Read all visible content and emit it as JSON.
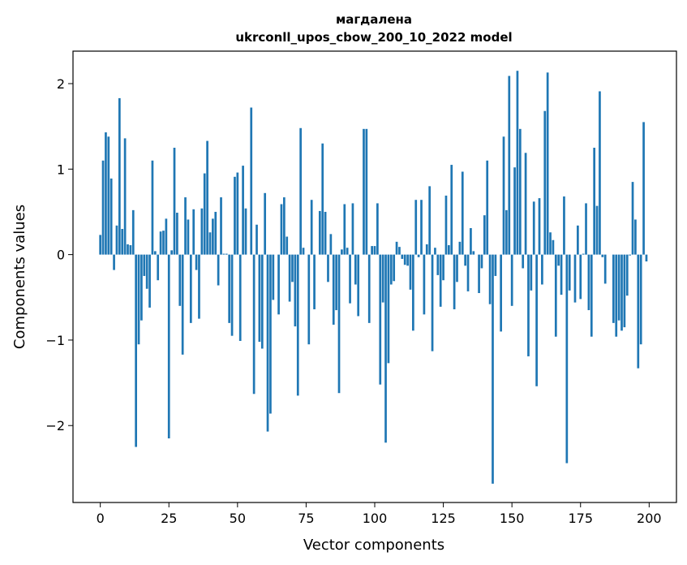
{
  "chart_data": {
    "type": "bar",
    "title_line1": "магдалена",
    "title_line2": "ukrconll_upos_cbow_200_10_2022 model",
    "xlabel": "Vector components",
    "ylabel": "Components values",
    "xlim": [
      -9.95,
      209.95
    ],
    "ylim": [
      -2.9,
      2.38
    ],
    "xticks": [
      0,
      25,
      50,
      75,
      100,
      125,
      150,
      175,
      200
    ],
    "xtick_labels": [
      "0",
      "25",
      "50",
      "75",
      "100",
      "125",
      "150",
      "175",
      "200"
    ],
    "yticks": [
      -2,
      -1,
      0,
      1,
      2
    ],
    "ytick_labels": [
      "−2",
      "−1",
      "0",
      "1",
      "2"
    ],
    "bar_color": "#1f77b4",
    "x": [
      0,
      1,
      2,
      3,
      4,
      5,
      6,
      7,
      8,
      9,
      10,
      11,
      12,
      13,
      14,
      15,
      16,
      17,
      18,
      19,
      20,
      21,
      22,
      23,
      24,
      25,
      26,
      27,
      28,
      29,
      30,
      31,
      32,
      33,
      34,
      35,
      36,
      37,
      38,
      39,
      40,
      41,
      42,
      43,
      44,
      45,
      46,
      47,
      48,
      49,
      50,
      51,
      52,
      53,
      54,
      55,
      56,
      57,
      58,
      59,
      60,
      61,
      62,
      63,
      64,
      65,
      66,
      67,
      68,
      69,
      70,
      71,
      72,
      73,
      74,
      75,
      76,
      77,
      78,
      79,
      80,
      81,
      82,
      83,
      84,
      85,
      86,
      87,
      88,
      89,
      90,
      91,
      92,
      93,
      94,
      95,
      96,
      97,
      98,
      99,
      100,
      101,
      102,
      103,
      104,
      105,
      106,
      107,
      108,
      109,
      110,
      111,
      112,
      113,
      114,
      115,
      116,
      117,
      118,
      119,
      120,
      121,
      122,
      123,
      124,
      125,
      126,
      127,
      128,
      129,
      130,
      131,
      132,
      133,
      134,
      135,
      136,
      137,
      138,
      139,
      140,
      141,
      142,
      143,
      144,
      145,
      146,
      147,
      148,
      149,
      150,
      151,
      152,
      153,
      154,
      155,
      156,
      157,
      158,
      159,
      160,
      161,
      162,
      163,
      164,
      165,
      166,
      167,
      168,
      169,
      170,
      171,
      172,
      173,
      174,
      175,
      176,
      177,
      178,
      179,
      180,
      181,
      182,
      183,
      184,
      185,
      186,
      187,
      188,
      189,
      190,
      191,
      192,
      193,
      194,
      195,
      196,
      197,
      198,
      199
    ],
    "values": [
      0.23,
      1.1,
      1.43,
      1.38,
      0.89,
      -0.18,
      0.34,
      1.83,
      0.3,
      1.36,
      0.12,
      0.11,
      0.52,
      -2.25,
      -1.05,
      -0.77,
      -0.25,
      -0.4,
      -0.62,
      1.1,
      0.04,
      -0.3,
      0.27,
      0.28,
      0.42,
      -2.15,
      0.05,
      1.25,
      0.49,
      -0.6,
      -1.17,
      0.67,
      0.41,
      -0.8,
      0.53,
      -0.18,
      -0.75,
      0.54,
      0.95,
      1.33,
      0.26,
      0.42,
      0.5,
      -0.36,
      0.67,
      0.01,
      0.01,
      -0.8,
      -0.95,
      0.91,
      0.96,
      -1.01,
      1.04,
      0.54,
      0.0,
      1.72,
      -1.63,
      0.35,
      -1.02,
      -1.1,
      0.72,
      -2.07,
      -1.86,
      -0.53,
      0.0,
      -0.7,
      0.59,
      0.67,
      0.21,
      -0.55,
      -0.32,
      -0.84,
      -1.65,
      1.48,
      0.08,
      0.0,
      -1.05,
      0.64,
      -0.64,
      0.0,
      0.51,
      1.3,
      0.5,
      -0.32,
      0.24,
      -0.82,
      -0.65,
      -1.62,
      0.06,
      0.59,
      0.08,
      -0.57,
      0.6,
      -0.35,
      -0.72,
      0.0,
      1.47,
      1.47,
      -0.8,
      0.1,
      0.1,
      0.6,
      -1.52,
      -0.56,
      -2.2,
      -1.27,
      -0.35,
      -0.31,
      0.15,
      0.09,
      -0.05,
      -0.12,
      -0.13,
      -0.41,
      -0.89,
      0.64,
      -0.03,
      0.64,
      -0.7,
      0.12,
      0.8,
      -1.13,
      0.08,
      -0.24,
      -0.61,
      -0.3,
      0.69,
      0.11,
      1.05,
      -0.64,
      -0.32,
      0.15,
      0.97,
      -0.13,
      -0.43,
      0.31,
      0.04,
      0.0,
      -0.45,
      -0.16,
      0.46,
      1.1,
      -0.58,
      -2.68,
      -0.25,
      0.0,
      -0.9,
      1.38,
      0.52,
      2.09,
      -0.6,
      1.02,
      2.15,
      1.47,
      -0.16,
      1.19,
      -1.19,
      -0.42,
      0.62,
      -1.54,
      0.66,
      -0.35,
      1.68,
      2.13,
      0.26,
      0.17,
      -0.96,
      -0.13,
      -0.47,
      0.68,
      -2.44,
      -0.42,
      0.0,
      -0.56,
      0.34,
      -0.52,
      0.01,
      0.6,
      -0.65,
      -0.96,
      1.25,
      0.57,
      1.91,
      -0.03,
      -0.34,
      0.0,
      0.0,
      -0.8,
      -0.96,
      -0.77,
      -0.89,
      -0.85,
      -0.48,
      -0.01,
      0.85,
      0.41,
      -1.33,
      -1.05,
      1.55,
      -0.08
    ]
  }
}
